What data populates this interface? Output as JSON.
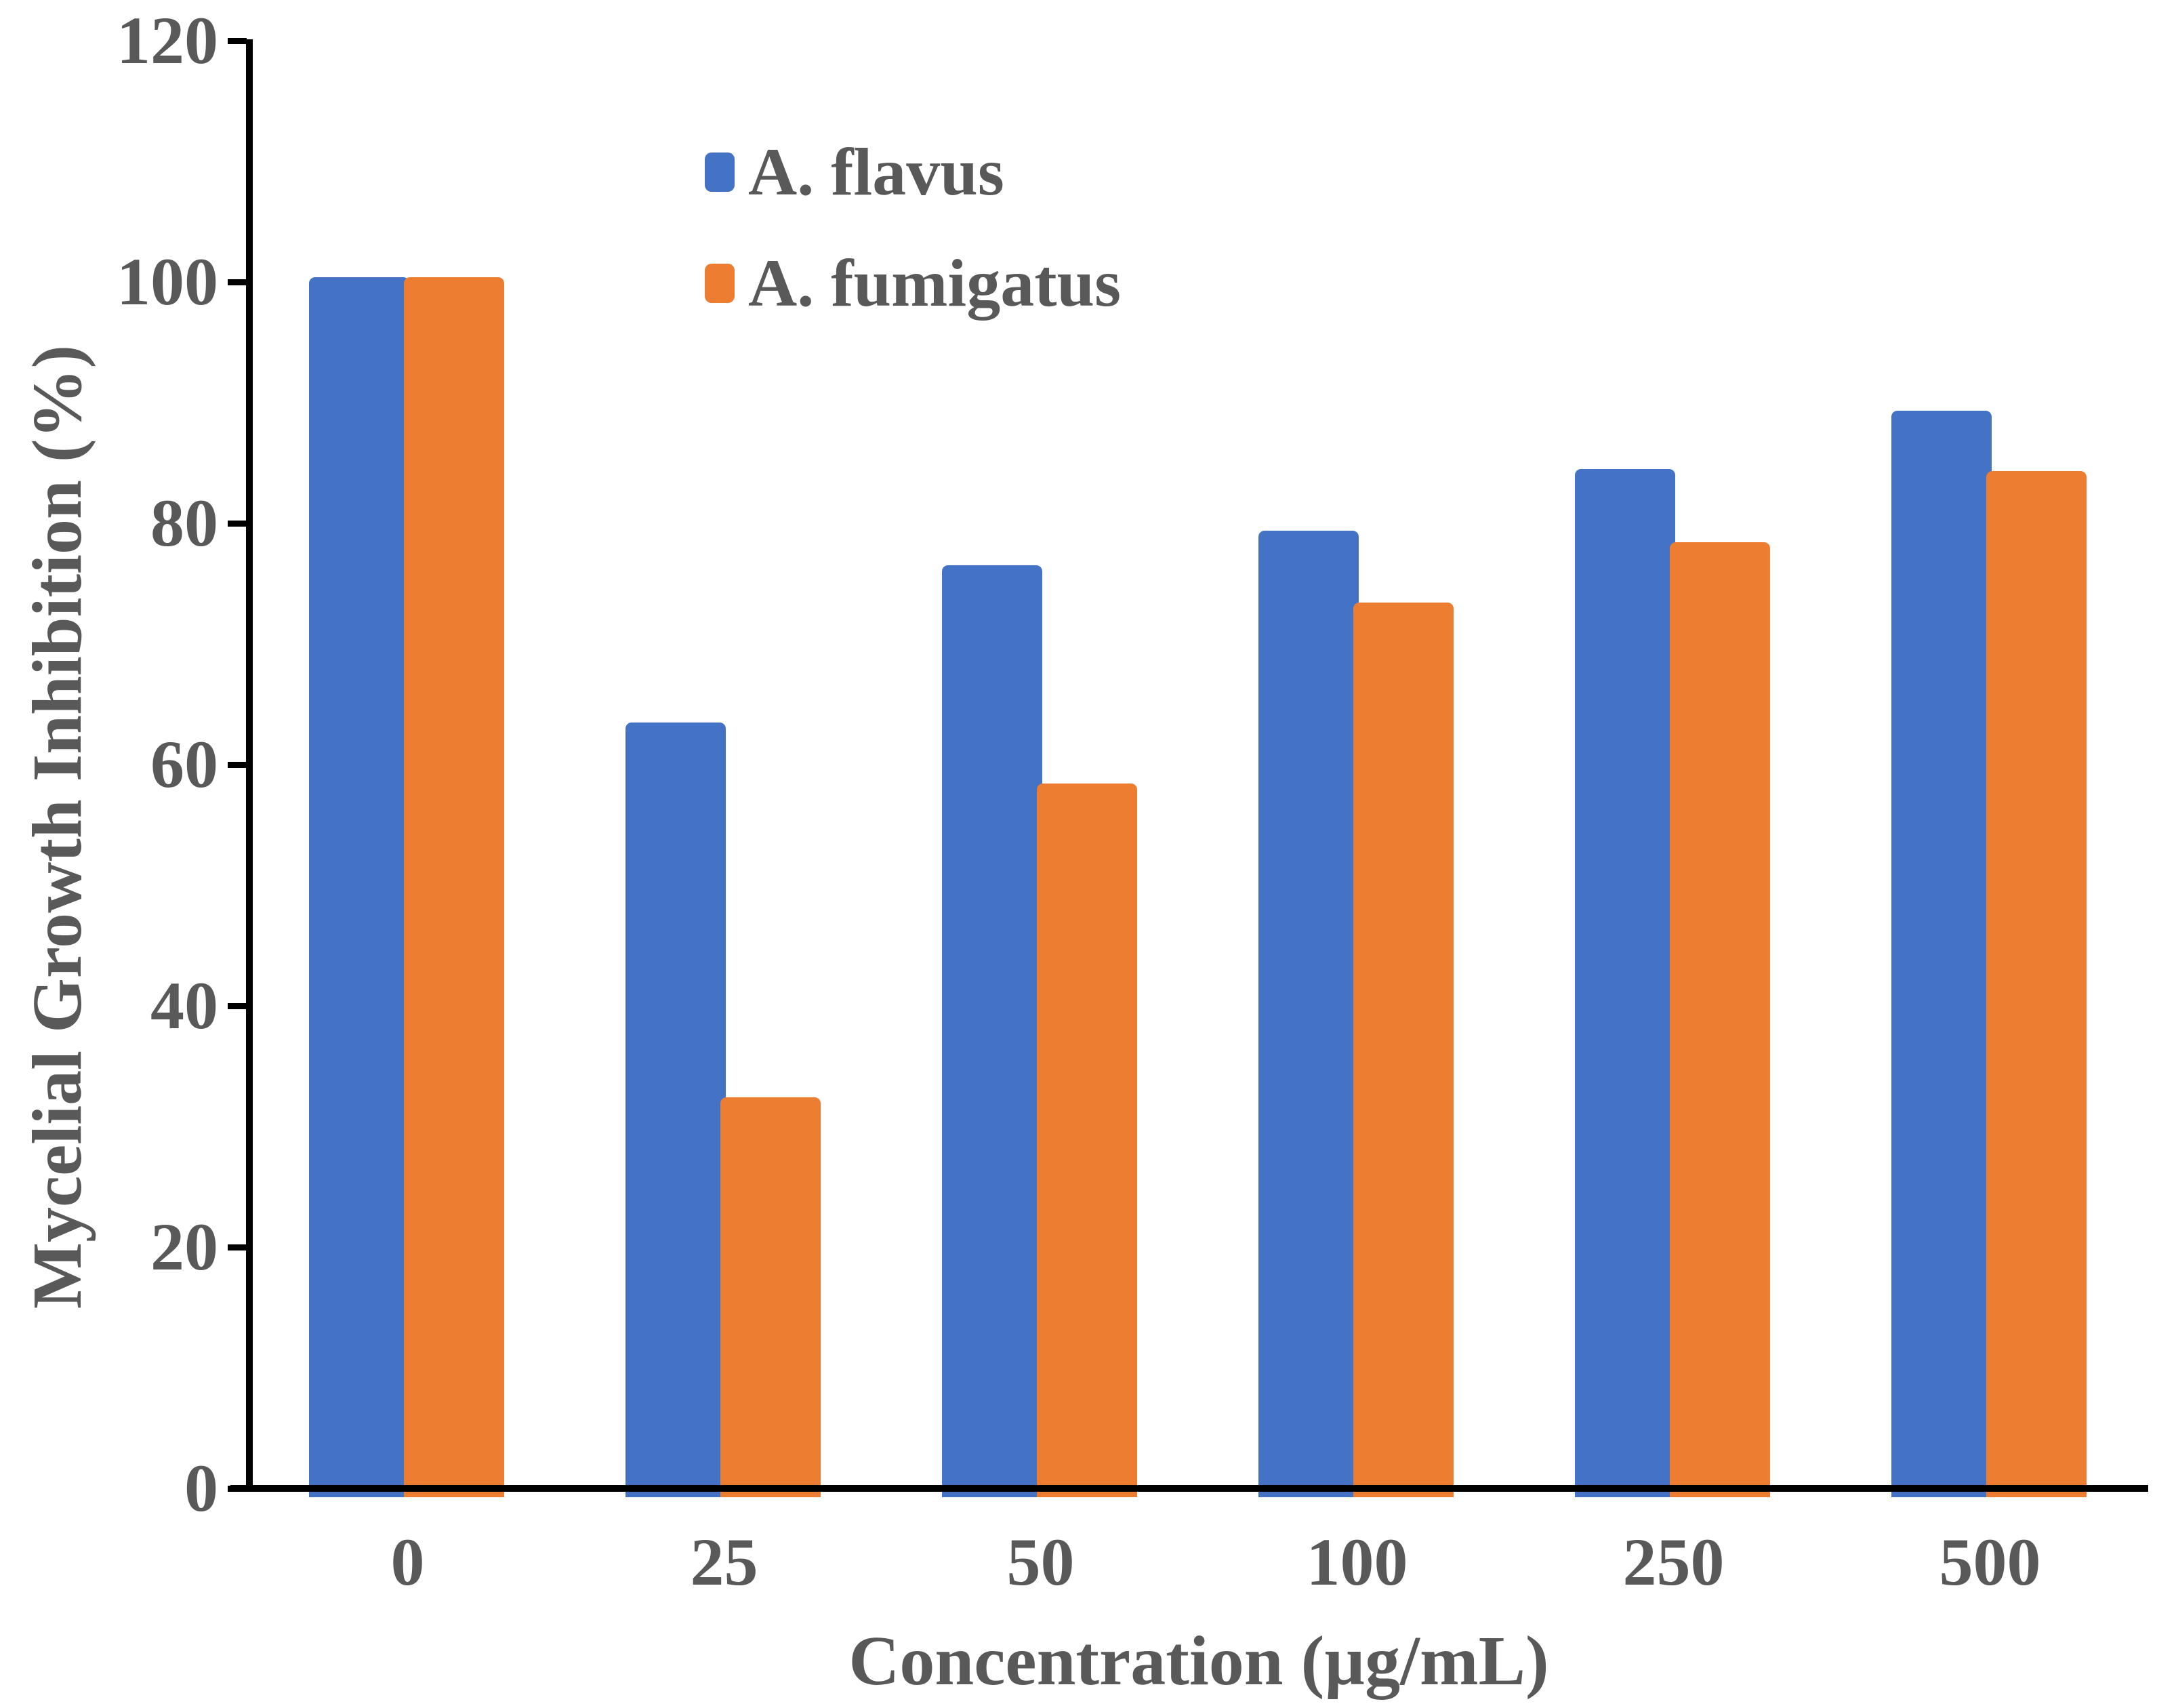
{
  "chart_data": {
    "type": "bar",
    "title": "",
    "categories": [
      "0",
      "25",
      "50",
      "100",
      "250",
      "500"
    ],
    "series": [
      {
        "name": "A. flavus",
        "color": "#4472C4",
        "values": [
          100.4,
          63.5,
          76.5,
          79.4,
          84.5,
          89.3
        ]
      },
      {
        "name": "A. fumigatus",
        "color": "#ED7D31",
        "values": [
          100.4,
          32.4,
          58.4,
          73.4,
          78.4,
          84.3
        ]
      }
    ],
    "xlabel": "Concentration (µg/mL)",
    "ylabel": "Mycelial Growth Inhibition (%)",
    "ylim": [
      0,
      120
    ],
    "yticks": [
      0,
      20,
      40,
      60,
      80,
      100,
      120
    ],
    "grid": false,
    "legend_position": "inside-upper-left"
  },
  "colors": {
    "axis": "#000000",
    "text": "#595959",
    "background": "#FFFFFF"
  }
}
